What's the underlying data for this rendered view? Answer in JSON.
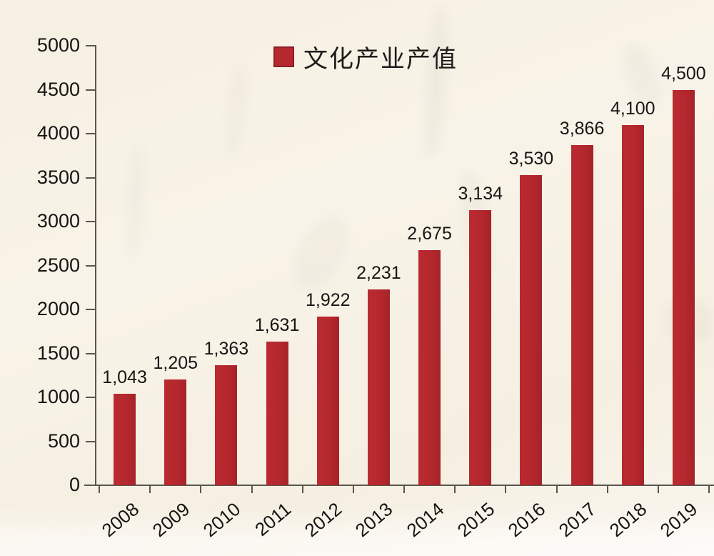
{
  "legend": {
    "label": "文化产业产值",
    "swatch_color": "#b5282e"
  },
  "chart_data": {
    "type": "bar",
    "title": "",
    "xlabel": "",
    "ylabel": "",
    "categories": [
      "2008",
      "2009",
      "2010",
      "2011",
      "2012",
      "2013",
      "2014",
      "2015",
      "2016",
      "2017",
      "2018",
      "2019"
    ],
    "values": [
      1043,
      1205,
      1363,
      1631,
      1922,
      2231,
      2675,
      3134,
      3530,
      3866,
      4100,
      4500
    ],
    "value_labels": [
      "1,043",
      "1,205",
      "1,363",
      "1,631",
      "1,922",
      "2,231",
      "2,675",
      "3,134",
      "3,530",
      "3,866",
      "4,100",
      "4,500"
    ],
    "series_name": "文化产业产值",
    "ylim": [
      0,
      5000
    ],
    "ytick_step": 500,
    "ytick_labels": [
      "0",
      "500",
      "1000",
      "1500",
      "2000",
      "2500",
      "3000",
      "3500",
      "4000",
      "4500",
      "5000"
    ],
    "grid": false,
    "legend_position": "top-center",
    "bar_color": "#b5282e"
  },
  "colors": {
    "background": "#f6f0e3",
    "bar": "#b5282e",
    "axis": "#5a564e",
    "text": "#161513"
  }
}
